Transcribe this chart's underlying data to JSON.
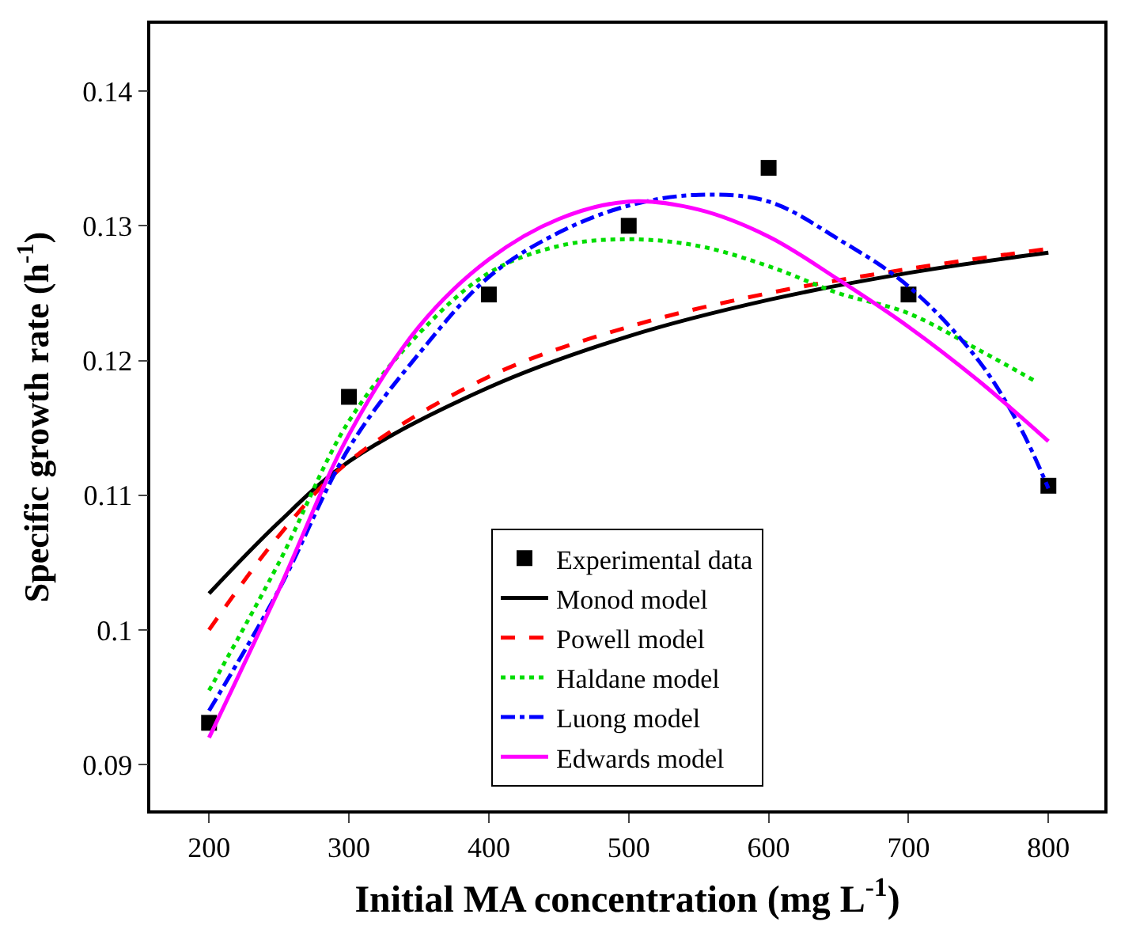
{
  "chart_data": {
    "type": "line",
    "xlabel": "Initial MA concentration (mg L$^{-1}$)",
    "ylabel": "Specific growth rate (h$^{-1}$)",
    "xlim": [
      158,
      840
    ],
    "ylim": [
      0.0866,
      0.145
    ],
    "xticks": [
      200,
      300,
      400,
      500,
      600,
      700,
      800
    ],
    "yticks": [
      0.09,
      0.1,
      0.11,
      0.12,
      0.13,
      0.14
    ],
    "legend": "bottom",
    "series": [
      {
        "name": "Experimental data",
        "type": "scatter",
        "marker": "square",
        "color": "#000000",
        "x": [
          200,
          300,
          400,
          500,
          600,
          700,
          800
        ],
        "values": [
          0.0931,
          0.1173,
          0.1249,
          0.13,
          0.1343,
          0.1249,
          0.1107
        ]
      },
      {
        "name": "Monod model",
        "color": "#000000",
        "line_style": "solid",
        "x": [
          200,
          250,
          300,
          400,
          500,
          600,
          700,
          800
        ],
        "values": [
          0.1027,
          0.108,
          0.1125,
          0.118,
          0.1218,
          0.1245,
          0.1265,
          0.128
        ]
      },
      {
        "name": "Powell model",
        "color": "#ff0000",
        "line_style": "dashed",
        "x": [
          200,
          250,
          300,
          400,
          500,
          600,
          700,
          800
        ],
        "values": [
          0.1,
          0.107,
          0.1125,
          0.1188,
          0.1225,
          0.125,
          0.1268,
          0.1283
        ]
      },
      {
        "name": "Haldane model",
        "color": "#00dd00",
        "line_style": "dotted",
        "x": [
          200,
          250,
          300,
          350,
          400,
          450,
          500,
          550,
          600,
          650,
          700,
          750,
          790
        ],
        "values": [
          0.0955,
          0.105,
          0.1155,
          0.122,
          0.1265,
          0.1285,
          0.129,
          0.1285,
          0.127,
          0.125,
          0.1235,
          0.1208,
          0.1185
        ]
      },
      {
        "name": "Luong model",
        "color": "#0000ff",
        "line_style": "dashdot",
        "x": [
          200,
          250,
          300,
          350,
          400,
          450,
          500,
          550,
          600,
          650,
          700,
          750,
          780,
          800
        ],
        "values": [
          0.094,
          0.103,
          0.1135,
          0.1205,
          0.1262,
          0.1295,
          0.1315,
          0.1323,
          0.1318,
          0.129,
          0.1255,
          0.12,
          0.115,
          0.1105
        ]
      },
      {
        "name": "Edwards model",
        "color": "#ff00ff",
        "line_style": "solid",
        "x": [
          200,
          250,
          300,
          350,
          400,
          450,
          500,
          550,
          600,
          650,
          700,
          750,
          800
        ],
        "values": [
          0.092,
          0.103,
          0.1145,
          0.1225,
          0.1275,
          0.1305,
          0.1318,
          0.1312,
          0.1292,
          0.126,
          0.1225,
          0.1185,
          0.114
        ]
      }
    ]
  }
}
